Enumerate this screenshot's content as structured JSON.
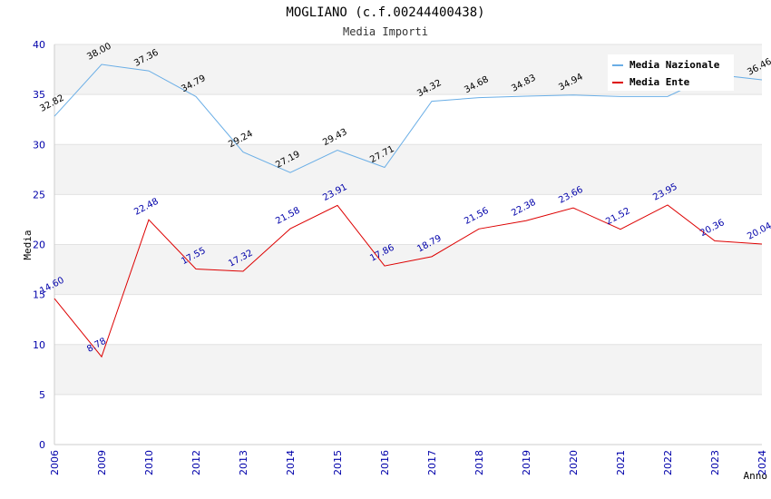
{
  "chart_data": {
    "type": "line",
    "title": "MOGLIANO (c.f.00244400438)",
    "subtitle": "Media Importi",
    "xlabel": "Anno",
    "ylabel": "Media",
    "ylim": [
      0,
      40
    ],
    "yticks": [
      "0",
      "5",
      "10",
      "15",
      "20",
      "25",
      "30",
      "35",
      "40"
    ],
    "categories": [
      "2006",
      "2009",
      "2010",
      "2012",
      "2013",
      "2014",
      "2015",
      "2016",
      "2017",
      "2018",
      "2019",
      "2020",
      "2021",
      "2022",
      "2023",
      "2024"
    ],
    "series": [
      {
        "name": "Media Nazionale",
        "color": "#6aaee6",
        "values": [
          32.82,
          38.0,
          37.36,
          34.79,
          29.24,
          27.19,
          29.43,
          27.71,
          34.32,
          34.68,
          34.83,
          34.94,
          null,
          null,
          null,
          36.46
        ],
        "line_values": [
          32.82,
          38.0,
          37.36,
          34.79,
          29.24,
          27.19,
          29.43,
          27.71,
          34.32,
          34.68,
          34.83,
          34.94,
          34.8,
          34.8,
          37.0,
          36.46
        ],
        "labels": [
          "32.82",
          "38.00",
          "37.36",
          "34.79",
          "29.24",
          "27.19",
          "29.43",
          "27.71",
          "34.32",
          "34.68",
          "34.83",
          "34.94",
          "",
          "",
          "",
          "36.46"
        ]
      },
      {
        "name": "Media Ente",
        "color": "#dd0000",
        "values": [
          14.6,
          8.78,
          22.48,
          17.55,
          17.32,
          21.58,
          23.91,
          17.86,
          18.79,
          21.56,
          22.38,
          23.66,
          21.52,
          23.95,
          20.36,
          20.04
        ],
        "labels": [
          "14.60",
          "8.78",
          "22.48",
          "17.55",
          "17.32",
          "21.58",
          "23.91",
          "17.86",
          "18.79",
          "21.56",
          "22.38",
          "23.66",
          "21.52",
          "23.95",
          "20.36",
          "20.04"
        ]
      }
    ],
    "grid": true,
    "legend": "top-right"
  }
}
